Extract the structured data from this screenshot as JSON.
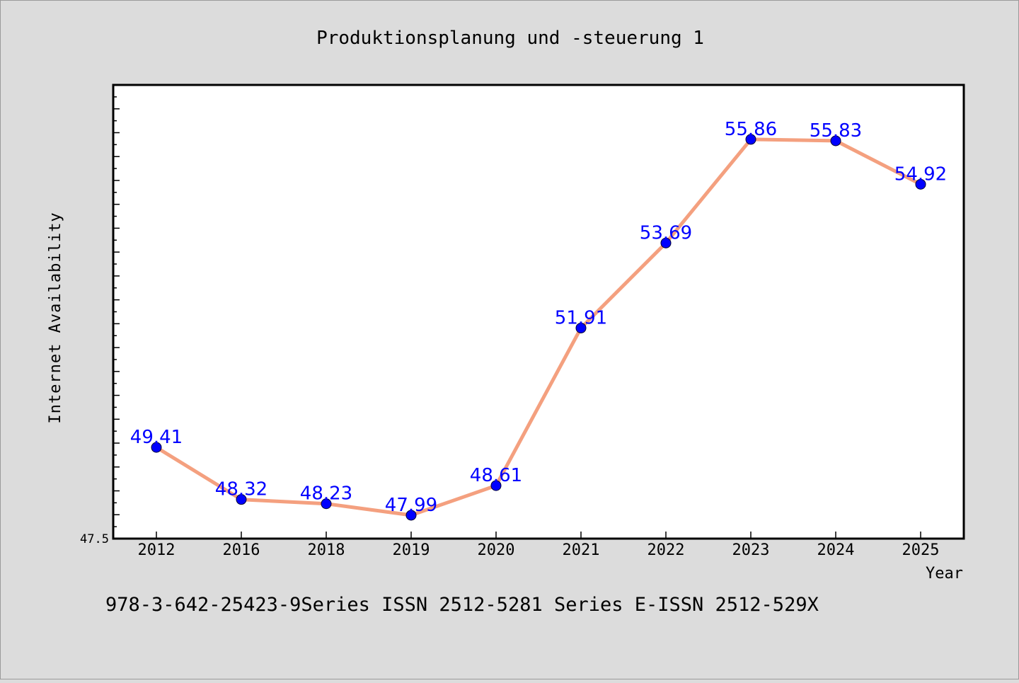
{
  "chart_data": {
    "type": "line",
    "title": "Produktionsplanung und -steuerung 1",
    "xlabel": "Year",
    "ylabel": "Internet Availability",
    "categories": [
      "2012",
      "2016",
      "2018",
      "2019",
      "2020",
      "2021",
      "2022",
      "2023",
      "2024",
      "2025"
    ],
    "series": [
      {
        "values": [
          49.41,
          48.32,
          48.23,
          47.99,
          48.61,
          51.91,
          53.69,
          55.86,
          55.83,
          54.92
        ],
        "labels": [
          "49.41",
          "48.32",
          "48.23",
          "47.99",
          "48.61",
          "51.91",
          "53.69",
          "55.86",
          "55.83",
          "54.92"
        ]
      }
    ],
    "ylim": [
      47.5,
      57.0
    ],
    "y_tick_labels": [
      "47.5"
    ],
    "grid": false,
    "colors": {
      "line": "#f4a07f",
      "marker": "#0000ff",
      "data_label": "#0000ff",
      "plot_background": "#ffffff",
      "figure_background": "#dcdcdc"
    }
  },
  "footer": {
    "text": "978-3-642-25423-9Series ISSN 2512-5281 Series E-ISSN 2512-529X"
  }
}
